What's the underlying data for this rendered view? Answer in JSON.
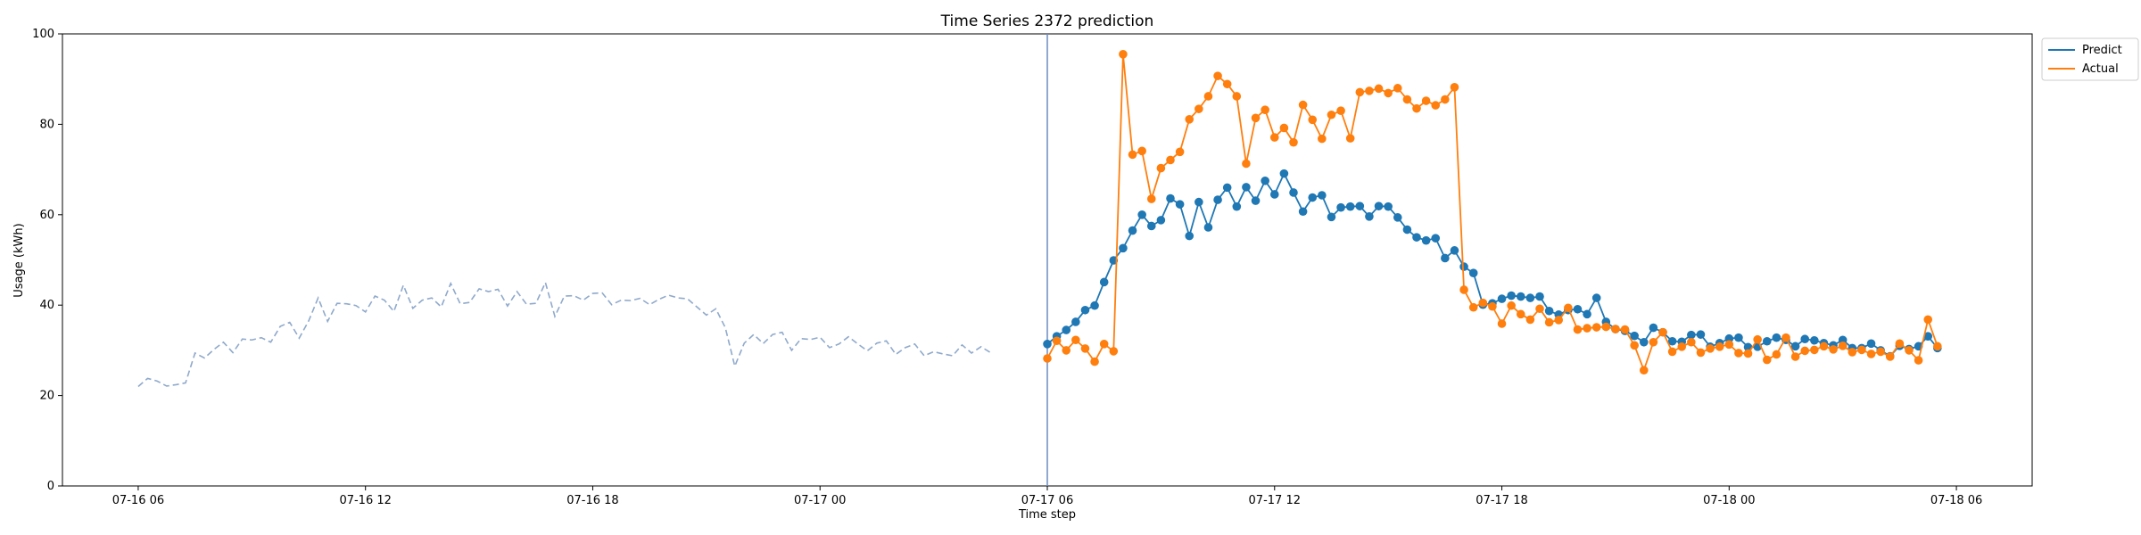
{
  "chart_data": {
    "type": "line",
    "title": "Time Series 2372 prediction",
    "xlabel": "Time step",
    "ylabel": "Usage (kWh)",
    "ylim": [
      0,
      100
    ],
    "yticks": [
      0,
      20,
      40,
      60,
      80,
      100
    ],
    "xlim": [
      "07-16 04:00",
      "07-18 08:00"
    ],
    "xticks": [
      "07-16 06",
      "07-16 12",
      "07-16 18",
      "07-17 00",
      "07-17 06",
      "07-17 12",
      "07-17 18",
      "07-18 00",
      "07-18 06"
    ],
    "xtick_times": [
      "07-16 06:00",
      "07-16 12:00",
      "07-16 18:00",
      "07-17 00:00",
      "07-17 06:00",
      "07-17 12:00",
      "07-17 18:00",
      "07-18 00:00",
      "07-18 06:00"
    ],
    "forecast_start": "07-17 06:00",
    "step_minutes": 15,
    "grid": false,
    "legend_position": "top-right outside",
    "history": {
      "start": "07-16 06:00",
      "style": "dashed",
      "color": "#8fa9cc",
      "values": [
        22.0,
        23.8,
        23.2,
        22.1,
        22.4,
        22.8,
        29.4,
        28.3,
        30.2,
        31.8,
        29.5,
        32.5,
        32.3,
        32.8,
        31.8,
        35.3,
        36.2,
        32.7,
        36.5,
        41.6,
        36.4,
        40.4,
        40.3,
        39.9,
        38.5,
        42.0,
        41.1,
        38.6,
        44.4,
        39.3,
        41.1,
        41.6,
        39.6,
        44.8,
        40.3,
        40.6,
        43.6,
        43.0,
        43.5,
        39.8,
        43.0,
        40.2,
        40.4,
        45.0,
        37.5,
        42.0,
        42.1,
        41.1,
        42.6,
        42.7,
        40.1,
        41.1,
        41.0,
        41.5,
        40.1,
        41.3,
        42.2,
        41.6,
        41.4,
        39.6,
        37.8,
        39.2,
        35.0,
        26.5,
        31.6,
        33.5,
        31.5,
        33.5,
        34.0,
        30.0,
        32.6,
        32.4,
        32.9,
        30.6,
        31.4,
        33.0,
        31.4,
        29.9,
        31.6,
        32.1,
        29.1,
        30.6,
        31.4,
        28.8,
        29.7,
        29.2,
        28.8,
        31.2,
        29.4,
        30.8,
        29.5
      ]
    },
    "series": [
      {
        "name": "Predict",
        "color": "#1f77b4",
        "start": "07-17 06:00",
        "values": [
          31.4,
          33.1,
          34.5,
          36.3,
          38.9,
          39.9,
          45.1,
          49.9,
          52.6,
          56.5,
          60.0,
          57.5,
          58.8,
          63.6,
          62.3,
          55.3,
          62.8,
          57.2,
          63.3,
          66.0,
          61.8,
          66.1,
          63.1,
          67.5,
          64.5,
          69.1,
          64.9,
          60.7,
          63.8,
          64.3,
          59.5,
          61.6,
          61.8,
          61.9,
          59.6,
          61.9,
          61.8,
          59.4,
          56.7,
          55.0,
          54.3,
          54.8,
          50.4,
          52.1,
          48.5,
          47.1,
          40.1,
          40.4,
          41.4,
          42.1,
          41.9,
          41.6,
          41.9,
          38.7,
          37.9,
          38.9,
          39.1,
          38.0,
          41.6,
          36.3,
          34.7,
          34.3,
          33.2,
          31.8,
          35.0,
          34.0,
          32.0,
          31.9,
          33.4,
          33.5,
          30.8,
          31.6,
          32.6,
          32.8,
          30.7,
          30.8,
          32.0,
          32.8,
          32.3,
          30.9,
          32.5,
          32.2,
          31.6,
          31.1,
          32.3,
          30.5,
          30.5,
          31.5,
          30.0,
          28.7,
          31.0,
          30.3,
          30.9,
          33.1,
          30.5
        ]
      },
      {
        "name": "Actual",
        "color": "#ff7f0e",
        "start": "07-17 06:00",
        "values": [
          28.2,
          32.1,
          30.0,
          32.3,
          30.4,
          27.5,
          31.4,
          29.8,
          95.5,
          73.3,
          74.1,
          63.5,
          70.3,
          72.1,
          73.9,
          81.1,
          83.4,
          86.2,
          90.7,
          88.9,
          86.2,
          71.3,
          81.4,
          83.2,
          77.1,
          79.2,
          76.0,
          84.3,
          81.0,
          76.8,
          82.1,
          83.0,
          76.9,
          87.1,
          87.4,
          87.9,
          86.9,
          88.0,
          85.5,
          83.5,
          85.2,
          84.2,
          85.5,
          88.2,
          43.4,
          39.5,
          40.5,
          39.7,
          35.9,
          39.9,
          38.0,
          36.8,
          39.2,
          36.2,
          36.7,
          39.4,
          34.6,
          34.9,
          35.1,
          35.2,
          34.7,
          34.6,
          31.1,
          25.6,
          31.8,
          34.0,
          29.7,
          30.8,
          31.8,
          29.5,
          30.4,
          30.8,
          31.3,
          29.4,
          29.3,
          32.4,
          27.9,
          29.1,
          32.8,
          28.6,
          29.9,
          30.1,
          30.9,
          30.2,
          31.0,
          29.6,
          30.1,
          29.2,
          29.7,
          28.6,
          31.5,
          30.0,
          27.8,
          36.8,
          30.9
        ]
      }
    ]
  }
}
